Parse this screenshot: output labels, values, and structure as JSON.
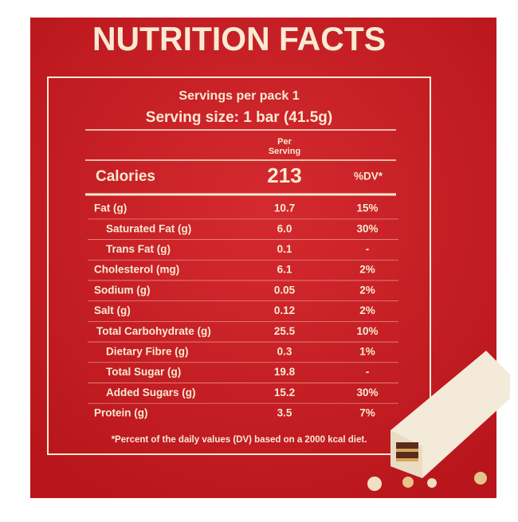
{
  "title": "NUTRITION FACTS",
  "servings_per_pack": "Servings per pack 1",
  "serving_size": "Serving size: 1 bar (41.5g)",
  "column_header": [
    "Per",
    "Serving"
  ],
  "calories": {
    "label": "Calories",
    "value": "213",
    "dv_header": "%DV*"
  },
  "rows": [
    [
      "Fat (g)",
      "10.7",
      "15%"
    ],
    [
      "Saturated Fat (g)",
      "6.0",
      "30%"
    ],
    [
      "Trans Fat (g)",
      "0.1",
      "-"
    ],
    [
      "Cholesterol (mg)",
      "6.1",
      "2%"
    ],
    [
      "Sodium (g)",
      "0.05",
      "2%"
    ],
    [
      "Salt (g)",
      "0.12",
      "2%"
    ],
    [
      "Total Carbohydrate (g)",
      "25.5",
      "10%"
    ],
    [
      "Dietary Fibre (g)",
      "0.3",
      "1%"
    ],
    [
      "Total Sugar (g)",
      "19.8",
      "-"
    ],
    [
      "Added Sugars (g)",
      "15.2",
      "30%"
    ],
    [
      "Protein (g)",
      "3.5",
      "7%"
    ]
  ],
  "footnote": "*Percent of the daily values (DV) based on a 2000 kcal diet."
}
